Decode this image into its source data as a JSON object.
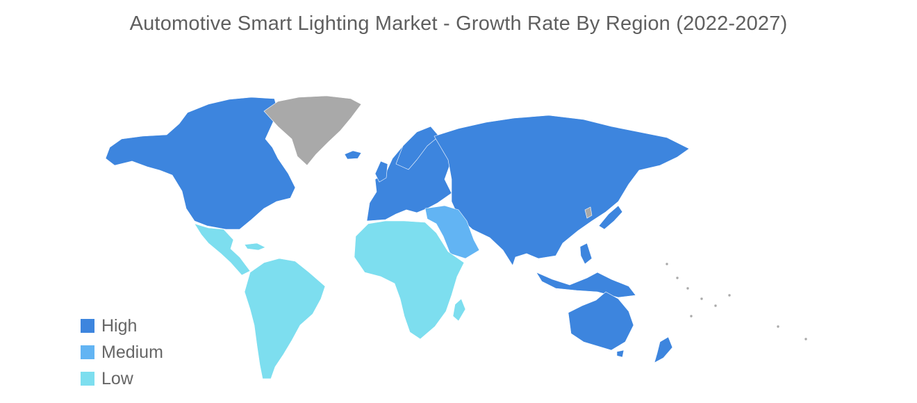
{
  "title": "Automotive Smart Lighting Market - Growth Rate By Region (2022-2027)",
  "colors": {
    "high": "#3d85de",
    "medium": "#62b4f3",
    "low": "#7ddeef",
    "no_data": "#a9a9a9"
  },
  "legend": [
    {
      "label": "High",
      "color": "#3d85de"
    },
    {
      "label": "Medium",
      "color": "#62b4f3"
    },
    {
      "label": "Low",
      "color": "#7ddeef"
    }
  ],
  "regions": [
    {
      "name": "North America",
      "level": "high"
    },
    {
      "name": "Europe",
      "level": "high"
    },
    {
      "name": "Asia-Pacific",
      "level": "high"
    },
    {
      "name": "Middle East",
      "level": "medium"
    },
    {
      "name": "Africa",
      "level": "low"
    },
    {
      "name": "Latin America",
      "level": "low"
    },
    {
      "name": "Greenland",
      "level": "no_data"
    }
  ]
}
